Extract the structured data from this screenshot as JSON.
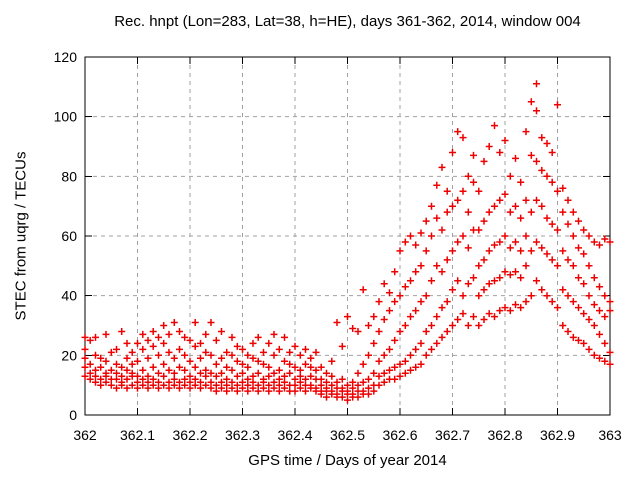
{
  "chart_data": {
    "type": "scatter",
    "title": "Rec. hnpt (Lon=283, Lat=38, h=HE), days 361-362, 2014, window 004",
    "xlabel": "GPS time / Days of year 2014",
    "ylabel": "STEC from uqrg / TECUs",
    "xlim": [
      362,
      363
    ],
    "ylim": [
      0,
      120
    ],
    "grid": "dashed",
    "legend": "none",
    "marker": {
      "shape": "plus",
      "color": "#ee0000",
      "size": 7,
      "stroke_width": 1.5
    },
    "colors": {
      "grid": "#a0a0a0",
      "border": "#000000",
      "text": "#000000",
      "background": "#ffffff"
    },
    "x_ticks": [
      {
        "value": 362,
        "label": "362"
      },
      {
        "value": 362.1,
        "label": "362.1"
      },
      {
        "value": 362.2,
        "label": "362.2"
      },
      {
        "value": 362.3,
        "label": "362.3"
      },
      {
        "value": 362.4,
        "label": "362.4"
      },
      {
        "value": 362.5,
        "label": "362.5"
      },
      {
        "value": 362.6,
        "label": "362.6"
      },
      {
        "value": 362.7,
        "label": "362.7"
      },
      {
        "value": 362.8,
        "label": "362.8"
      },
      {
        "value": 362.9,
        "label": "362.9"
      },
      {
        "value": 363,
        "label": "363"
      }
    ],
    "y_ticks": [
      {
        "value": 0,
        "label": "0"
      },
      {
        "value": 20,
        "label": "20"
      },
      {
        "value": 40,
        "label": "40"
      },
      {
        "value": 60,
        "label": "60"
      },
      {
        "value": 80,
        "label": "80"
      },
      {
        "value": 100,
        "label": "100"
      },
      {
        "value": 120,
        "label": "120"
      }
    ],
    "columns": [
      {
        "x": 362.0,
        "ys": [
          13,
          16,
          19,
          22,
          26
        ]
      },
      {
        "x": 362.01,
        "ys": [
          12,
          14,
          17,
          25
        ]
      },
      {
        "x": 362.02,
        "ys": [
          11,
          13,
          15,
          20,
          26
        ]
      },
      {
        "x": 362.03,
        "ys": [
          10,
          12,
          16,
          19
        ]
      },
      {
        "x": 362.04,
        "ys": [
          11,
          13,
          14,
          18,
          27
        ]
      },
      {
        "x": 362.05,
        "ys": [
          10,
          12,
          15,
          21
        ]
      },
      {
        "x": 362.06,
        "ys": [
          9,
          12,
          14,
          17,
          22
        ]
      },
      {
        "x": 362.07,
        "ys": [
          10,
          11,
          13,
          16,
          28
        ]
      },
      {
        "x": 362.08,
        "ys": [
          9,
          12,
          15,
          19,
          24
        ]
      },
      {
        "x": 362.09,
        "ys": [
          10,
          13,
          14,
          17,
          21
        ]
      },
      {
        "x": 362.1,
        "ys": [
          9,
          11,
          13,
          18,
          24
        ]
      },
      {
        "x": 362.11,
        "ys": [
          10,
          12,
          15,
          22,
          27
        ]
      },
      {
        "x": 362.12,
        "ys": [
          9,
          11,
          13,
          19,
          25
        ]
      },
      {
        "x": 362.13,
        "ys": [
          10,
          12,
          16,
          23,
          28
        ]
      },
      {
        "x": 362.14,
        "ys": [
          9,
          11,
          14,
          20,
          26
        ]
      },
      {
        "x": 362.15,
        "ys": [
          10,
          13,
          17,
          24,
          30
        ]
      },
      {
        "x": 362.16,
        "ys": [
          9,
          11,
          15,
          21,
          27
        ]
      },
      {
        "x": 362.17,
        "ys": [
          10,
          12,
          14,
          19,
          31
        ]
      },
      {
        "x": 362.18,
        "ys": [
          9,
          11,
          16,
          22,
          28
        ]
      },
      {
        "x": 362.19,
        "ys": [
          10,
          12,
          15,
          20,
          26
        ]
      },
      {
        "x": 362.2,
        "ys": [
          9,
          11,
          13,
          18,
          25
        ]
      },
      {
        "x": 362.21,
        "ys": [
          10,
          12,
          16,
          23,
          31
        ]
      },
      {
        "x": 362.22,
        "ys": [
          9,
          11,
          14,
          19,
          24
        ]
      },
      {
        "x": 362.23,
        "ys": [
          10,
          13,
          15,
          21,
          27
        ]
      },
      {
        "x": 362.24,
        "ys": [
          9,
          11,
          14,
          20,
          31
        ]
      },
      {
        "x": 362.25,
        "ys": [
          8,
          10,
          13,
          17,
          25
        ]
      },
      {
        "x": 362.26,
        "ys": [
          9,
          11,
          14,
          19,
          28
        ]
      },
      {
        "x": 362.27,
        "ys": [
          8,
          10,
          12,
          16,
          21
        ]
      },
      {
        "x": 362.28,
        "ys": [
          9,
          11,
          15,
          20,
          26
        ]
      },
      {
        "x": 362.29,
        "ys": [
          8,
          10,
          13,
          18,
          23
        ]
      },
      {
        "x": 362.3,
        "ys": [
          9,
          11,
          14,
          17,
          22
        ]
      },
      {
        "x": 362.31,
        "ys": [
          8,
          10,
          12,
          16,
          20
        ]
      },
      {
        "x": 362.32,
        "ys": [
          9,
          11,
          13,
          19,
          24
        ]
      },
      {
        "x": 362.33,
        "ys": [
          8,
          10,
          14,
          18,
          26
        ]
      },
      {
        "x": 362.34,
        "ys": [
          9,
          11,
          12,
          17,
          21
        ]
      },
      {
        "x": 362.35,
        "ys": [
          8,
          10,
          13,
          16,
          24
        ]
      },
      {
        "x": 362.36,
        "ys": [
          9,
          11,
          14,
          20,
          27
        ]
      },
      {
        "x": 362.37,
        "ys": [
          8,
          10,
          12,
          15,
          22
        ]
      },
      {
        "x": 362.38,
        "ys": [
          9,
          11,
          13,
          18,
          26
        ]
      },
      {
        "x": 362.39,
        "ys": [
          8,
          10,
          14,
          17,
          21
        ]
      },
      {
        "x": 362.4,
        "ys": [
          8,
          10,
          12,
          16,
          23
        ]
      },
      {
        "x": 362.41,
        "ys": [
          9,
          11,
          13,
          15,
          20
        ]
      },
      {
        "x": 362.42,
        "ys": [
          8,
          10,
          12,
          17,
          22
        ]
      },
      {
        "x": 362.43,
        "ys": [
          9,
          10,
          13,
          16,
          19
        ]
      },
      {
        "x": 362.44,
        "ys": [
          8,
          9,
          12,
          15,
          21
        ]
      },
      {
        "x": 362.45,
        "ys": [
          7,
          8,
          10,
          12,
          16
        ]
      },
      {
        "x": 362.46,
        "ys": [
          6,
          8,
          9,
          11,
          14
        ]
      },
      {
        "x": 362.47,
        "ys": [
          7,
          8,
          10,
          13,
          18
        ]
      },
      {
        "x": 362.48,
        "ys": [
          6,
          7,
          9,
          11,
          31
        ]
      },
      {
        "x": 362.49,
        "ys": [
          6,
          8,
          9,
          12,
          23
        ]
      },
      {
        "x": 362.5,
        "ys": [
          5,
          7,
          8,
          10,
          33
        ]
      },
      {
        "x": 362.51,
        "ys": [
          6,
          7,
          9,
          11,
          29
        ]
      },
      {
        "x": 362.52,
        "ys": [
          6,
          8,
          10,
          14,
          28
        ]
      },
      {
        "x": 362.53,
        "ys": [
          7,
          8,
          11,
          17,
          42
        ]
      },
      {
        "x": 362.54,
        "ys": [
          7,
          9,
          12,
          20,
          30
        ]
      },
      {
        "x": 362.55,
        "ys": [
          8,
          10,
          14,
          24,
          33
        ]
      },
      {
        "x": 362.56,
        "ys": [
          10,
          13,
          18,
          28,
          38
        ]
      },
      {
        "x": 362.57,
        "ys": [
          11,
          14,
          20,
          32,
          44
        ]
      },
      {
        "x": 362.58,
        "ys": [
          12,
          15,
          22,
          35,
          41
        ]
      },
      {
        "x": 362.59,
        "ys": [
          12,
          16,
          25,
          38,
          48
        ]
      },
      {
        "x": 362.6,
        "ys": [
          13,
          17,
          28,
          40,
          55
        ]
      },
      {
        "x": 362.61,
        "ys": [
          14,
          18,
          30,
          43,
          58
        ]
      },
      {
        "x": 362.62,
        "ys": [
          15,
          20,
          33,
          45,
          60
        ]
      },
      {
        "x": 362.63,
        "ys": [
          16,
          22,
          35,
          48,
          57
        ]
      },
      {
        "x": 362.64,
        "ys": [
          17,
          24,
          38,
          50,
          61
        ]
      },
      {
        "x": 362.65,
        "ys": [
          20,
          28,
          40,
          55,
          65
        ]
      },
      {
        "x": 362.66,
        "ys": [
          22,
          30,
          45,
          60,
          70
        ]
      },
      {
        "x": 362.67,
        "ys": [
          24,
          33,
          50,
          66,
          77
        ]
      },
      {
        "x": 362.68,
        "ys": [
          26,
          36,
          48,
          62,
          83
        ]
      },
      {
        "x": 362.69,
        "ys": [
          28,
          38,
          52,
          68,
          75
        ]
      },
      {
        "x": 362.7,
        "ys": [
          30,
          42,
          55,
          70,
          88
        ]
      },
      {
        "x": 362.71,
        "ys": [
          32,
          45,
          58,
          72,
          95
        ]
      },
      {
        "x": 362.72,
        "ys": [
          34,
          40,
          60,
          75,
          93
        ]
      },
      {
        "x": 362.73,
        "ys": [
          30,
          44,
          56,
          68,
          80
        ]
      },
      {
        "x": 362.74,
        "ys": [
          33,
          46,
          62,
          78,
          87
        ]
      },
      {
        "x": 362.75,
        "ys": [
          30,
          40,
          50,
          62,
          75
        ]
      },
      {
        "x": 362.76,
        "ys": [
          32,
          42,
          52,
          65,
          85
        ]
      },
      {
        "x": 362.77,
        "ys": [
          34,
          44,
          55,
          68,
          90
        ]
      },
      {
        "x": 362.78,
        "ys": [
          33,
          45,
          57,
          70,
          97
        ]
      },
      {
        "x": 362.79,
        "ys": [
          35,
          46,
          58,
          72,
          88
        ]
      },
      {
        "x": 362.8,
        "ys": [
          36,
          48,
          60,
          74,
          92
        ]
      },
      {
        "x": 362.81,
        "ys": [
          35,
          47,
          56,
          68,
          80
        ]
      },
      {
        "x": 362.82,
        "ys": [
          37,
          48,
          58,
          70,
          86
        ]
      },
      {
        "x": 362.83,
        "ys": [
          36,
          46,
          55,
          66,
          78
        ]
      },
      {
        "x": 362.84,
        "ys": [
          38,
          50,
          60,
          72,
          95
        ]
      },
      {
        "x": 362.85,
        "ys": [
          40,
          55,
          68,
          87,
          105
        ]
      },
      {
        "x": 362.86,
        "ys": [
          45,
          58,
          72,
          85,
          102,
          111
        ]
      },
      {
        "x": 362.87,
        "ys": [
          42,
          56,
          70,
          82,
          93
        ]
      },
      {
        "x": 362.88,
        "ys": [
          40,
          54,
          66,
          80,
          91
        ]
      },
      {
        "x": 362.89,
        "ys": [
          38,
          52,
          64,
          78,
          88
        ]
      },
      {
        "x": 362.9,
        "ys": [
          36,
          50,
          62,
          75,
          104
        ]
      },
      {
        "x": 362.91,
        "ys": [
          30,
          42,
          55,
          68,
          76
        ]
      },
      {
        "x": 362.92,
        "ys": [
          28,
          40,
          52,
          64,
          72
        ]
      },
      {
        "x": 362.93,
        "ys": [
          26,
          38,
          50,
          60,
          68
        ]
      },
      {
        "x": 362.94,
        "ys": [
          25,
          36,
          46,
          56,
          65
        ]
      },
      {
        "x": 362.95,
        "ys": [
          24,
          34,
          44,
          54,
          62
        ]
      },
      {
        "x": 362.96,
        "ys": [
          22,
          32,
          40,
          50,
          60
        ]
      },
      {
        "x": 362.97,
        "ys": [
          20,
          30,
          37,
          46,
          58
        ]
      },
      {
        "x": 362.98,
        "ys": [
          19,
          27,
          35,
          43,
          57
        ]
      },
      {
        "x": 362.99,
        "ys": [
          18,
          24,
          33,
          40,
          59
        ]
      },
      {
        "x": 363.0,
        "ys": [
          17,
          21,
          35,
          38,
          58
        ]
      }
    ]
  }
}
